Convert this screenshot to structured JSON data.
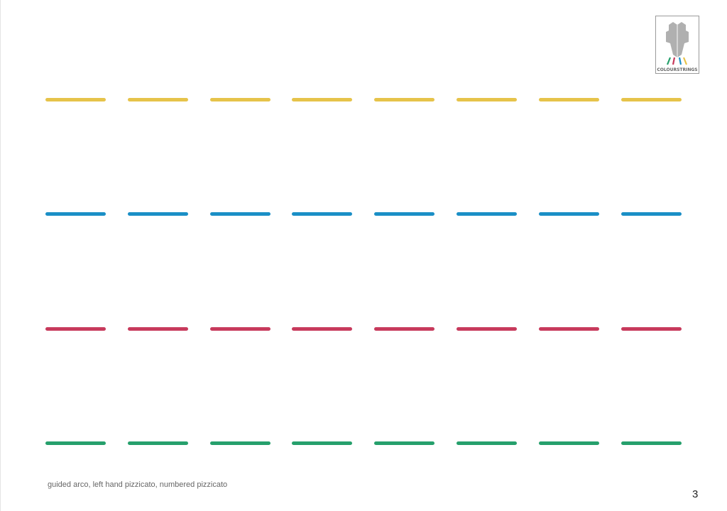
{
  "logo": {
    "text": "COLOURSTRINGS"
  },
  "rows": [
    {
      "color": "#E6C34A",
      "dashes": 8
    },
    {
      "color": "#1B8FC6",
      "dashes": 8
    },
    {
      "color": "#C73A5C",
      "dashes": 8
    },
    {
      "color": "#26A06C",
      "dashes": 8
    }
  ],
  "caption": "guided arco, left hand pizzicato, numbered pizzicato",
  "page_number": "3"
}
